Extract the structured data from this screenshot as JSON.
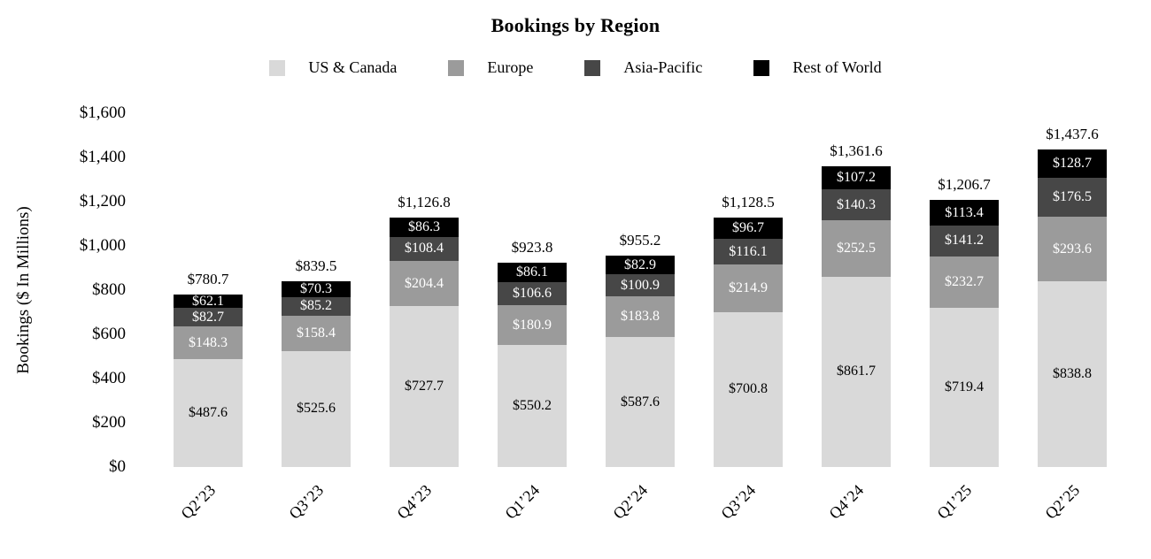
{
  "chart_data": {
    "type": "bar",
    "stacked": true,
    "title": "Bookings by Region",
    "ylabel": "Bookings ($ In Millions)",
    "ylim": [
      0,
      1600
    ],
    "y_tick_labels": [
      "$1,600",
      "$1,400",
      "$1,200",
      "$1,000",
      "$800",
      "$600",
      "$400",
      "$200",
      "$0"
    ],
    "gridlines": false,
    "legend_position": "top",
    "categories": [
      "Q2’23",
      "Q3’23",
      "Q4’23",
      "Q1’24",
      "Q2’24",
      "Q3’24",
      "Q4’24",
      "Q1’25",
      "Q2’25"
    ],
    "series": [
      {
        "name": "US & Canada",
        "color": "#d9d9d9",
        "label_color": "#000000",
        "values": [
          487.6,
          525.6,
          727.7,
          550.2,
          587.6,
          700.8,
          861.7,
          719.4,
          838.8
        ]
      },
      {
        "name": "Europe",
        "color": "#9b9b9b",
        "label_color": "#ffffff",
        "values": [
          148.3,
          158.4,
          204.4,
          180.9,
          183.8,
          214.9,
          252.5,
          232.7,
          293.6
        ]
      },
      {
        "name": "Asia-Pacific",
        "color": "#474747",
        "label_color": "#ffffff",
        "values": [
          82.7,
          85.2,
          108.4,
          106.6,
          100.9,
          116.1,
          140.3,
          141.2,
          176.5
        ]
      },
      {
        "name": "Rest of World",
        "color": "#000000",
        "label_color": "#ffffff",
        "values": [
          62.1,
          70.3,
          86.3,
          86.1,
          82.9,
          96.7,
          107.2,
          113.4,
          128.7
        ]
      }
    ],
    "totals_formatted": [
      "$780.7",
      "$839.5",
      "$1,126.8",
      "$923.8",
      "$955.2",
      "$1,128.5",
      "$1,361.6",
      "$1,206.7",
      "$1,437.6"
    ]
  }
}
